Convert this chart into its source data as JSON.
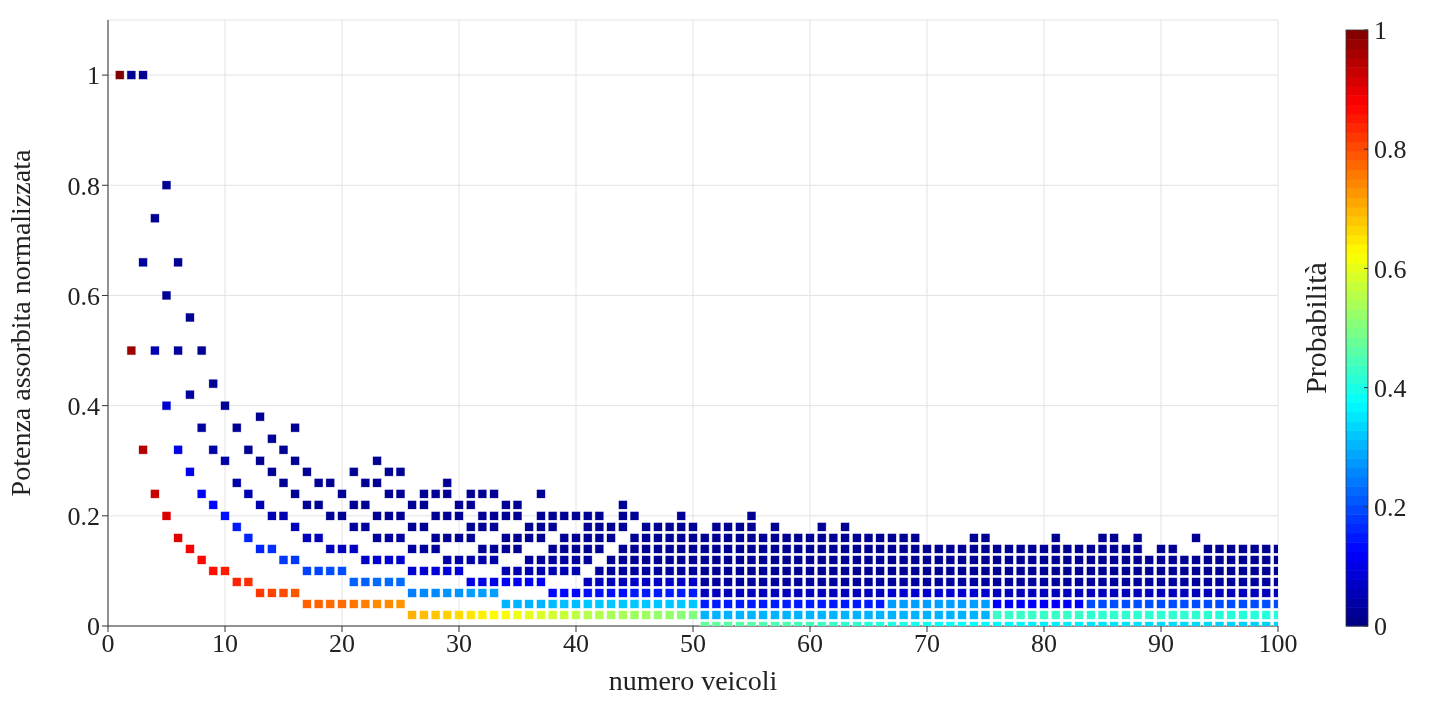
{
  "chart_data": {
    "type": "scatter",
    "xlabel": "numero veicoli",
    "ylabel": "Potenza assorbita normalizzata",
    "clabel": "Probabilità",
    "xlim": [
      0,
      100
    ],
    "xticks": [
      0,
      10,
      20,
      30,
      40,
      50,
      60,
      70,
      80,
      90,
      100
    ],
    "ylim": [
      0,
      1.1
    ],
    "yticks": [
      0,
      0.2,
      0.4,
      0.6,
      0.8,
      1
    ],
    "clim": [
      0,
      1
    ],
    "cticks": [
      0,
      0.2,
      0.4,
      0.6,
      0.8,
      1
    ],
    "grid": true,
    "marker": "square",
    "x": [
      1,
      2,
      2,
      3,
      3,
      3,
      4,
      4,
      4,
      5,
      5,
      5,
      5,
      6,
      6,
      6,
      6,
      7,
      7,
      7,
      7,
      8,
      8,
      8,
      8,
      9,
      9,
      9,
      9,
      10,
      10,
      10,
      10,
      11,
      11,
      11,
      11,
      12,
      12,
      12,
      12,
      13,
      13,
      13,
      13,
      13,
      14,
      14,
      14,
      14,
      14,
      15,
      15,
      15,
      15,
      15,
      16,
      16,
      16,
      16,
      16,
      16,
      17,
      17,
      17,
      17,
      17,
      18,
      18,
      18,
      18,
      18,
      19,
      19,
      19,
      19,
      19,
      20,
      20,
      20,
      20,
      20,
      21,
      21,
      21,
      21,
      21,
      21,
      22,
      22,
      22,
      22,
      22,
      22,
      23,
      23,
      23,
      23,
      23,
      23,
      23,
      24,
      24,
      24,
      24,
      24,
      24,
      24,
      25,
      25,
      25,
      25,
      25,
      25,
      25,
      26,
      26,
      26,
      26,
      26,
      26,
      27,
      27,
      27,
      27,
      27,
      27,
      27,
      28,
      28,
      28,
      28,
      28,
      28,
      28,
      29,
      29,
      29,
      29,
      29,
      29,
      29,
      29,
      30,
      30,
      30,
      30,
      30,
      30,
      30,
      31,
      31,
      31,
      31,
      31,
      31,
      31,
      31,
      32,
      32,
      32,
      32,
      32,
      32,
      32,
      32,
      33,
      33,
      33,
      33,
      33,
      33,
      33,
      33,
      34,
      34,
      34,
      34,
      34,
      34,
      34,
      34,
      35,
      35,
      35,
      35,
      35,
      35,
      35,
      35,
      36,
      36,
      36,
      36,
      36,
      36,
      36,
      37,
      37,
      37,
      37,
      37,
      37,
      37,
      37,
      37,
      38,
      38,
      38,
      38,
      38,
      38,
      38,
      38,
      39,
      39,
      39,
      39,
      39,
      39,
      39,
      39,
      40,
      40,
      40,
      40,
      40,
      40,
      40,
      40,
      41,
      41,
      41,
      41,
      41,
      41,
      41,
      41,
      41,
      42,
      42,
      42,
      42,
      42,
      42,
      42,
      42,
      42,
      43,
      43,
      43,
      43,
      43,
      43,
      43,
      43,
      44,
      44,
      44,
      44,
      44,
      44,
      44,
      44,
      44,
      44,
      45,
      45,
      45,
      45,
      45,
      45,
      45,
      45,
      45,
      46,
      46,
      46,
      46,
      46,
      46,
      46,
      46,
      46,
      47,
      47,
      47,
      47,
      47,
      47,
      47,
      47,
      47,
      48,
      48,
      48,
      48,
      48,
      48,
      48,
      48,
      48,
      49,
      49,
      49,
      49,
      49,
      49,
      49,
      49,
      49,
      49,
      50,
      50,
      50,
      50,
      50,
      50,
      50,
      50,
      50,
      51,
      51,
      51,
      51,
      51,
      51,
      51,
      51,
      51,
      52,
      52,
      52,
      52,
      52,
      52,
      52,
      52,
      52,
      52,
      53,
      53,
      53,
      53,
      53,
      53,
      53,
      53,
      53,
      53,
      54,
      54,
      54,
      54,
      54,
      54,
      54,
      54,
      54,
      54,
      55,
      55,
      55,
      55,
      55,
      55,
      55,
      55,
      55,
      55,
      55,
      56,
      56,
      56,
      56,
      56,
      56,
      56,
      56,
      56,
      57,
      57,
      57,
      57,
      57,
      57,
      57,
      57,
      57,
      57,
      58,
      58,
      58,
      58,
      58,
      58,
      58,
      58,
      58,
      59,
      59,
      59,
      59,
      59,
      59,
      59,
      59,
      59,
      60,
      60,
      60,
      60,
      60,
      60,
      60,
      60,
      60,
      61,
      61,
      61,
      61,
      61,
      61,
      61,
      61,
      61,
      61,
      62,
      62,
      62,
      62,
      62,
      62,
      62,
      62,
      62,
      63,
      63,
      63,
      63,
      63,
      63,
      63,
      63,
      63,
      63,
      64,
      64,
      64,
      64,
      64,
      64,
      64,
      64,
      64,
      65,
      65,
      65,
      65,
      65,
      65,
      65,
      65,
      65,
      66,
      66,
      66,
      66,
      66,
      66,
      66,
      66,
      66,
      67,
      67,
      67,
      67,
      67,
      67,
      67,
      67,
      67,
      68,
      68,
      68,
      68,
      68,
      68,
      68,
      68,
      68,
      69,
      69,
      69,
      69,
      69,
      69,
      69,
      69,
      69,
      70,
      70,
      70,
      70,
      70,
      70,
      70,
      70,
      71,
      71,
      71,
      71,
      71,
      71,
      71,
      71,
      72,
      72,
      72,
      72,
      72,
      72,
      72,
      72,
      73,
      73,
      73,
      73,
      73,
      73,
      73,
      73,
      74,
      74,
      74,
      74,
      74,
      74,
      74,
      74,
      74,
      75,
      75,
      75,
      75,
      75,
      75,
      75,
      75,
      75,
      76,
      76,
      76,
      76,
      76,
      76,
      76,
      76,
      77,
      77,
      77,
      77,
      77,
      77,
      77,
      77,
      78,
      78,
      78,
      78,
      78,
      78,
      78,
      78,
      79,
      79,
      79,
      79,
      79,
      79,
      79,
      79,
      80,
      80,
      80,
      80,
      80,
      80,
      80,
      80,
      81,
      81,
      81,
      81,
      81,
      81,
      81,
      81,
      81,
      82,
      82,
      82,
      82,
      82,
      82,
      82,
      82,
      83,
      83,
      83,
      83,
      83,
      83,
      83,
      83,
      84,
      84,
      84,
      84,
      84,
      84,
      84,
      84,
      85,
      85,
      85,
      85,
      85,
      85,
      85,
      85,
      85,
      86,
      86,
      86,
      86,
      86,
      86,
      86,
      86,
      86,
      87,
      87,
      87,
      87,
      87,
      87,
      87,
      87,
      88,
      88,
      88,
      88,
      88,
      88,
      88,
      88,
      88,
      89,
      89,
      89,
      89,
      89,
      89,
      89,
      90,
      90,
      90,
      90,
      90,
      90,
      90,
      90,
      91,
      91,
      91,
      91,
      91,
      91,
      91,
      91,
      92,
      92,
      92,
      92,
      92,
      92,
      92,
      93,
      93,
      93,
      93,
      93,
      93,
      93,
      93,
      94,
      94,
      94,
      94,
      94,
      94,
      94,
      94,
      95,
      95,
      95,
      95,
      95,
      95,
      95,
      95,
      96,
      96,
      96,
      96,
      96,
      96,
      96,
      96,
      97,
      97,
      97,
      97,
      97,
      97,
      97,
      97,
      98,
      98,
      98,
      98,
      98,
      98,
      98,
      98,
      99,
      99,
      99,
      99,
      99,
      99,
      99,
      99,
      100,
      100,
      100,
      100,
      100,
      100,
      100,
      100
    ],
    "values": [
      1,
      0.5,
      1,
      0.32,
      0.66,
      1,
      0.24,
      0.5,
      0.74,
      0.2,
      0.4,
      0.6,
      0.8,
      0.16,
      0.32,
      0.5,
      0.66,
      0.14,
      0.28,
      0.42,
      0.56,
      0.12,
      0.24,
      0.36,
      0.5,
      0.1,
      0.22,
      0.32,
      0.44,
      0.1,
      0.2,
      0.3,
      0.4,
      0.08,
      0.18,
      0.26,
      0.36,
      0.08,
      0.16,
      0.24,
      0.32,
      0.06,
      0.14,
      0.22,
      0.3,
      0.38,
      0.06,
      0.14,
      0.2,
      0.28,
      0.34,
      0.06,
      0.12,
      0.2,
      0.26,
      0.32,
      0.06,
      0.12,
      0.18,
      0.24,
      0.3,
      0.36,
      0.04,
      0.1,
      0.16,
      0.22,
      0.28,
      0.04,
      0.1,
      0.16,
      0.22,
      0.26,
      0.04,
      0.1,
      0.14,
      0.2,
      0.26,
      0.04,
      0.1,
      0.14,
      0.2,
      0.24,
      0.04,
      0.08,
      0.14,
      0.18,
      0.22,
      0.28,
      0.04,
      0.08,
      0.12,
      0.18,
      0.22,
      0.26,
      0.04,
      0.08,
      0.12,
      0.16,
      0.2,
      0.26,
      0.3,
      0.04,
      0.08,
      0.12,
      0.16,
      0.2,
      0.24,
      0.28,
      0.04,
      0.08,
      0.12,
      0.16,
      0.2,
      0.24,
      0.28,
      0.02,
      0.06,
      0.1,
      0.14,
      0.18,
      0.22,
      0.02,
      0.06,
      0.1,
      0.14,
      0.18,
      0.22,
      0.24,
      0.02,
      0.06,
      0.1,
      0.14,
      0.16,
      0.2,
      0.24,
      0.02,
      0.06,
      0.1,
      0.12,
      0.16,
      0.2,
      0.24,
      0.26,
      0.02,
      0.06,
      0.1,
      0.12,
      0.16,
      0.2,
      0.22,
      0.02,
      0.06,
      0.08,
      0.12,
      0.16,
      0.18,
      0.22,
      0.24,
      0.02,
      0.06,
      0.08,
      0.12,
      0.14,
      0.18,
      0.2,
      0.24,
      0.02,
      0.06,
      0.08,
      0.12,
      0.14,
      0.18,
      0.2,
      0.24,
      0.02,
      0.04,
      0.08,
      0.1,
      0.14,
      0.16,
      0.2,
      0.22,
      0.02,
      0.04,
      0.08,
      0.1,
      0.14,
      0.16,
      0.2,
      0.22,
      0.02,
      0.04,
      0.08,
      0.1,
      0.12,
      0.16,
      0.18,
      0.02,
      0.04,
      0.08,
      0.1,
      0.12,
      0.16,
      0.18,
      0.2,
      0.24,
      0.02,
      0.04,
      0.06,
      0.1,
      0.12,
      0.14,
      0.18,
      0.2,
      0.02,
      0.04,
      0.06,
      0.1,
      0.12,
      0.14,
      0.16,
      0.2,
      0.02,
      0.04,
      0.06,
      0.1,
      0.12,
      0.14,
      0.16,
      0.2,
      0.02,
      0.04,
      0.06,
      0.08,
      0.12,
      0.14,
      0.16,
      0.18,
      0.2,
      0.02,
      0.04,
      0.06,
      0.08,
      0.1,
      0.14,
      0.16,
      0.18,
      0.2,
      0.02,
      0.04,
      0.06,
      0.08,
      0.1,
      0.12,
      0.16,
      0.18,
      0.02,
      0.04,
      0.06,
      0.08,
      0.1,
      0.12,
      0.14,
      0.18,
      0.2,
      0.22,
      0.02,
      0.04,
      0.06,
      0.08,
      0.1,
      0.12,
      0.14,
      0.16,
      0.2,
      0.02,
      0.04,
      0.06,
      0.08,
      0.1,
      0.12,
      0.14,
      0.16,
      0.18,
      0.02,
      0.04,
      0.06,
      0.08,
      0.1,
      0.12,
      0.14,
      0.16,
      0.18,
      0.02,
      0.04,
      0.06,
      0.08,
      0.1,
      0.12,
      0.14,
      0.16,
      0.18,
      0.02,
      0.04,
      0.06,
      0.08,
      0.1,
      0.12,
      0.14,
      0.16,
      0.18,
      0.2,
      0.02,
      0.04,
      0.06,
      0.08,
      0.1,
      0.12,
      0.14,
      0.16,
      0.18,
      0,
      0.02,
      0.04,
      0.06,
      0.08,
      0.1,
      0.12,
      0.14,
      0.16,
      0,
      0.02,
      0.04,
      0.06,
      0.08,
      0.1,
      0.12,
      0.14,
      0.16,
      0.18,
      0,
      0.02,
      0.04,
      0.06,
      0.08,
      0.1,
      0.12,
      0.14,
      0.16,
      0.18,
      0,
      0.02,
      0.04,
      0.06,
      0.08,
      0.1,
      0.12,
      0.14,
      0.16,
      0.18,
      0,
      0.02,
      0.04,
      0.06,
      0.08,
      0.1,
      0.12,
      0.14,
      0.16,
      0.18,
      0.2,
      0,
      0.02,
      0.04,
      0.06,
      0.08,
      0.1,
      0.12,
      0.14,
      0.16,
      0,
      0.02,
      0.04,
      0.06,
      0.08,
      0.1,
      0.12,
      0.14,
      0.16,
      0.18,
      0,
      0.02,
      0.04,
      0.06,
      0.08,
      0.1,
      0.12,
      0.14,
      0.16,
      0,
      0.02,
      0.04,
      0.06,
      0.08,
      0.1,
      0.12,
      0.14,
      0.16,
      0,
      0.02,
      0.04,
      0.06,
      0.08,
      0.1,
      0.12,
      0.14,
      0.16,
      0,
      0.02,
      0.04,
      0.06,
      0.08,
      0.1,
      0.12,
      0.14,
      0.16,
      0.18,
      0,
      0.02,
      0.04,
      0.06,
      0.08,
      0.1,
      0.12,
      0.14,
      0.16,
      0,
      0.02,
      0.04,
      0.06,
      0.08,
      0.1,
      0.12,
      0.14,
      0.16,
      0.18,
      0,
      0.02,
      0.04,
      0.06,
      0.08,
      0.1,
      0.12,
      0.14,
      0.16,
      0,
      0.02,
      0.04,
      0.06,
      0.08,
      0.1,
      0.12,
      0.14,
      0.16,
      0,
      0.02,
      0.04,
      0.06,
      0.08,
      0.1,
      0.12,
      0.14,
      0.16,
      0,
      0.02,
      0.04,
      0.06,
      0.08,
      0.1,
      0.12,
      0.14,
      0.16,
      0,
      0.02,
      0.04,
      0.06,
      0.08,
      0.1,
      0.12,
      0.14,
      0.16,
      0,
      0.02,
      0.04,
      0.06,
      0.08,
      0.1,
      0.12,
      0.14,
      0.16,
      0,
      0.02,
      0.04,
      0.06,
      0.08,
      0.1,
      0.12,
      0.14,
      0,
      0.02,
      0.04,
      0.06,
      0.08,
      0.1,
      0.12,
      0.14,
      0,
      0.02,
      0.04,
      0.06,
      0.08,
      0.1,
      0.12,
      0.14,
      0,
      0.02,
      0.04,
      0.06,
      0.08,
      0.1,
      0.12,
      0.14,
      0,
      0.02,
      0.04,
      0.06,
      0.08,
      0.1,
      0.12,
      0.14,
      0.16,
      0,
      0.02,
      0.04,
      0.06,
      0.08,
      0.1,
      0.12,
      0.14,
      0.16,
      0,
      0.02,
      0.04,
      0.06,
      0.08,
      0.1,
      0.12,
      0.14,
      0,
      0.02,
      0.04,
      0.06,
      0.08,
      0.1,
      0.12,
      0.14,
      0,
      0.02,
      0.04,
      0.06,
      0.08,
      0.1,
      0.12,
      0.14,
      0,
      0.02,
      0.04,
      0.06,
      0.08,
      0.1,
      0.12,
      0.14,
      0,
      0.02,
      0.04,
      0.06,
      0.08,
      0.1,
      0.12,
      0.14,
      0,
      0.02,
      0.04,
      0.06,
      0.08,
      0.1,
      0.12,
      0.14,
      0.16,
      0,
      0.02,
      0.04,
      0.06,
      0.08,
      0.1,
      0.12,
      0.14,
      0,
      0.02,
      0.04,
      0.06,
      0.08,
      0.1,
      0.12,
      0.14,
      0,
      0.02,
      0.04,
      0.06,
      0.08,
      0.1,
      0.12,
      0.14,
      0,
      0.02,
      0.04,
      0.06,
      0.08,
      0.1,
      0.12,
      0.14,
      0.16,
      0,
      0.02,
      0.04,
      0.06,
      0.08,
      0.1,
      0.12,
      0.14,
      0.16,
      0,
      0.02,
      0.04,
      0.06,
      0.08,
      0.1,
      0.12,
      0.14,
      0,
      0.02,
      0.04,
      0.06,
      0.08,
      0.1,
      0.12,
      0.14,
      0.16,
      0,
      0.02,
      0.04,
      0.06,
      0.08,
      0.1,
      0.12,
      0,
      0.02,
      0.04,
      0.06,
      0.08,
      0.1,
      0.12,
      0.14,
      0,
      0.02,
      0.04,
      0.06,
      0.08,
      0.1,
      0.12,
      0.14,
      0,
      0.02,
      0.04,
      0.06,
      0.08,
      0.1,
      0.12,
      0,
      0.02,
      0.04,
      0.06,
      0.08,
      0.1,
      0.12,
      0.16,
      0,
      0.02,
      0.04,
      0.06,
      0.08,
      0.1,
      0.12,
      0.14,
      0,
      0.02,
      0.04,
      0.06,
      0.08,
      0.1,
      0.12,
      0.14,
      0,
      0.02,
      0.04,
      0.06,
      0.08,
      0.1,
      0.12,
      0.14,
      0,
      0.02,
      0.04,
      0.06,
      0.08,
      0.1,
      0.12,
      0.14,
      0,
      0.02,
      0.04,
      0.06,
      0.08,
      0.1,
      0.12,
      0.14,
      0,
      0.02,
      0.04,
      0.06,
      0.08,
      0.1,
      0.12,
      0.14,
      0,
      0.02,
      0.04,
      0.06,
      0.08,
      0.1,
      0.12,
      0.14
    ],
    "cvalues": [
      1,
      0.97,
      0.02,
      0.95,
      0.03,
      0.02,
      0.93,
      0.05,
      0.02,
      0.91,
      0.08,
      0.02,
      0.02,
      0.9,
      0.1,
      0.03,
      0.02,
      0.88,
      0.11,
      0.03,
      0.02,
      0.87,
      0.12,
      0.03,
      0.02,
      0.86,
      0.13,
      0.04,
      0.02,
      0.85,
      0.14,
      0.04,
      0.02,
      0.84,
      0.15,
      0.04,
      0.02,
      0.83,
      0.16,
      0.05,
      0.02,
      0.82,
      0.16,
      0.05,
      0.02,
      0.02,
      0.81,
      0.17,
      0.05,
      0.02,
      0.02,
      0.8,
      0.18,
      0.05,
      0.02,
      0.02,
      0.79,
      0.18,
      0.06,
      0.02,
      0.02,
      0.02,
      0.78,
      0.19,
      0.06,
      0.02,
      0.02,
      0.78,
      0.19,
      0.06,
      0.02,
      0.02,
      0.77,
      0.2,
      0.06,
      0.02,
      0.02,
      0.77,
      0.2,
      0.06,
      0.02,
      0.02,
      0.76,
      0.22,
      0.07,
      0.03,
      0.02,
      0.02,
      0.75,
      0.22,
      0.07,
      0.03,
      0.02,
      0.02,
      0.74,
      0.23,
      0.08,
      0.03,
      0.02,
      0.02,
      0.02,
      0.74,
      0.23,
      0.08,
      0.03,
      0.02,
      0.02,
      0.02,
      0.73,
      0.23,
      0.08,
      0.03,
      0.02,
      0.02,
      0.02,
      0.7,
      0.25,
      0.08,
      0.03,
      0.02,
      0.02,
      0.69,
      0.26,
      0.08,
      0.03,
      0.02,
      0.02,
      0.02,
      0.68,
      0.26,
      0.09,
      0.03,
      0.02,
      0.02,
      0.02,
      0.67,
      0.27,
      0.09,
      0.04,
      0.02,
      0.02,
      0.02,
      0.02,
      0.66,
      0.27,
      0.09,
      0.04,
      0.02,
      0.02,
      0.02,
      0.65,
      0.28,
      0.1,
      0.04,
      0.02,
      0.02,
      0.02,
      0.02,
      0.64,
      0.28,
      0.1,
      0.04,
      0.02,
      0.02,
      0.02,
      0.02,
      0.63,
      0.28,
      0.1,
      0.04,
      0.02,
      0.02,
      0.02,
      0.02,
      0.62,
      0.3,
      0.12,
      0.05,
      0.02,
      0.02,
      0.02,
      0.02,
      0.61,
      0.3,
      0.12,
      0.05,
      0.02,
      0.02,
      0.02,
      0.02,
      0.6,
      0.3,
      0.12,
      0.05,
      0.03,
      0.02,
      0.02,
      0.59,
      0.3,
      0.12,
      0.05,
      0.03,
      0.02,
      0.02,
      0.02,
      0.02,
      0.58,
      0.31,
      0.13,
      0.05,
      0.03,
      0.02,
      0.02,
      0.02,
      0.57,
      0.31,
      0.13,
      0.05,
      0.03,
      0.02,
      0.02,
      0.02,
      0.56,
      0.31,
      0.13,
      0.05,
      0.03,
      0.02,
      0.02,
      0.02,
      0.55,
      0.32,
      0.14,
      0.06,
      0.03,
      0.02,
      0.02,
      0.02,
      0.02,
      0.55,
      0.32,
      0.14,
      0.06,
      0.03,
      0.02,
      0.02,
      0.02,
      0.02,
      0.54,
      0.32,
      0.14,
      0.06,
      0.03,
      0.02,
      0.02,
      0.02,
      0.54,
      0.32,
      0.14,
      0.06,
      0.03,
      0.02,
      0.02,
      0.02,
      0.02,
      0.02,
      0.53,
      0.32,
      0.15,
      0.07,
      0.03,
      0.02,
      0.02,
      0.02,
      0.02,
      0.53,
      0.32,
      0.15,
      0.07,
      0.03,
      0.02,
      0.02,
      0.02,
      0.02,
      0.52,
      0.32,
      0.15,
      0.07,
      0.03,
      0.02,
      0.02,
      0.02,
      0.02,
      0.52,
      0.32,
      0.15,
      0.07,
      0.03,
      0.02,
      0.02,
      0.02,
      0.02,
      0.51,
      0.32,
      0.15,
      0.07,
      0.03,
      0.02,
      0.02,
      0.02,
      0.02,
      0.02,
      0.5,
      0.32,
      0.15,
      0.07,
      0.03,
      0.02,
      0.02,
      0.02,
      0.02,
      0.47,
      0.3,
      0.15,
      0.06,
      0.03,
      0.02,
      0.02,
      0.02,
      0.02,
      0.47,
      0.3,
      0.15,
      0.06,
      0.03,
      0.02,
      0.02,
      0.02,
      0.02,
      0.02,
      0.46,
      0.3,
      0.15,
      0.06,
      0.03,
      0.02,
      0.02,
      0.02,
      0.02,
      0.02,
      0.46,
      0.3,
      0.15,
      0.06,
      0.03,
      0.02,
      0.02,
      0.02,
      0.02,
      0.02,
      0.46,
      0.3,
      0.15,
      0.06,
      0.03,
      0.02,
      0.02,
      0.02,
      0.02,
      0.02,
      0.02,
      0.45,
      0.3,
      0.15,
      0.06,
      0.03,
      0.02,
      0.02,
      0.02,
      0.02,
      0.45,
      0.3,
      0.15,
      0.06,
      0.03,
      0.02,
      0.02,
      0.02,
      0.02,
      0.02,
      0.45,
      0.3,
      0.15,
      0.06,
      0.03,
      0.02,
      0.02,
      0.02,
      0.02,
      0.44,
      0.3,
      0.15,
      0.06,
      0.03,
      0.02,
      0.02,
      0.02,
      0.02,
      0.44,
      0.3,
      0.15,
      0.06,
      0.03,
      0.02,
      0.02,
      0.02,
      0.02,
      0.43,
      0.3,
      0.15,
      0.06,
      0.03,
      0.02,
      0.02,
      0.02,
      0.02,
      0.02,
      0.43,
      0.3,
      0.15,
      0.06,
      0.03,
      0.02,
      0.02,
      0.02,
      0.02,
      0.42,
      0.3,
      0.15,
      0.06,
      0.03,
      0.02,
      0.02,
      0.02,
      0.02,
      0.02,
      0.42,
      0.3,
      0.15,
      0.06,
      0.03,
      0.02,
      0.02,
      0.02,
      0.02,
      0.41,
      0.3,
      0.15,
      0.06,
      0.03,
      0.02,
      0.02,
      0.02,
      0.02,
      0.41,
      0.3,
      0.15,
      0.06,
      0.03,
      0.02,
      0.02,
      0.02,
      0.02,
      0.4,
      0.3,
      0.28,
      0.08,
      0.03,
      0.02,
      0.02,
      0.02,
      0.02,
      0.4,
      0.3,
      0.28,
      0.08,
      0.03,
      0.02,
      0.02,
      0.02,
      0.02,
      0.39,
      0.3,
      0.28,
      0.08,
      0.03,
      0.02,
      0.02,
      0.02,
      0.02,
      0.39,
      0.3,
      0.28,
      0.08,
      0.03,
      0.02,
      0.02,
      0.02,
      0.38,
      0.3,
      0.28,
      0.08,
      0.03,
      0.02,
      0.02,
      0.02,
      0.38,
      0.3,
      0.28,
      0.08,
      0.03,
      0.02,
      0.02,
      0.02,
      0.38,
      0.3,
      0.28,
      0.08,
      0.03,
      0.02,
      0.02,
      0.02,
      0.38,
      0.3,
      0.28,
      0.08,
      0.03,
      0.02,
      0.02,
      0.02,
      0.02,
      0.37,
      0.3,
      0.28,
      0.08,
      0.03,
      0.02,
      0.02,
      0.02,
      0.02,
      0.37,
      0.43,
      0.12,
      0.06,
      0.03,
      0.02,
      0.02,
      0.02,
      0.37,
      0.43,
      0.12,
      0.06,
      0.03,
      0.02,
      0.02,
      0.02,
      0.37,
      0.43,
      0.12,
      0.06,
      0.03,
      0.02,
      0.02,
      0.02,
      0.36,
      0.43,
      0.12,
      0.06,
      0.03,
      0.02,
      0.02,
      0.02,
      0.36,
      0.43,
      0.12,
      0.06,
      0.03,
      0.02,
      0.02,
      0.02,
      0.36,
      0.43,
      0.12,
      0.06,
      0.03,
      0.02,
      0.02,
      0.02,
      0.02,
      0.36,
      0.43,
      0.12,
      0.06,
      0.03,
      0.02,
      0.02,
      0.02,
      0.36,
      0.43,
      0.12,
      0.06,
      0.03,
      0.02,
      0.02,
      0.02,
      0.35,
      0.42,
      0.2,
      0.06,
      0.03,
      0.02,
      0.02,
      0.02,
      0.35,
      0.42,
      0.2,
      0.06,
      0.03,
      0.02,
      0.02,
      0.02,
      0.02,
      0.35,
      0.42,
      0.2,
      0.06,
      0.03,
      0.02,
      0.02,
      0.02,
      0.02,
      0.35,
      0.42,
      0.2,
      0.06,
      0.03,
      0.02,
      0.02,
      0.02,
      0.35,
      0.42,
      0.2,
      0.06,
      0.03,
      0.02,
      0.02,
      0.02,
      0.02,
      0.34,
      0.42,
      0.2,
      0.06,
      0.03,
      0.02,
      0.02,
      0.34,
      0.42,
      0.2,
      0.06,
      0.03,
      0.02,
      0.02,
      0.02,
      0.34,
      0.42,
      0.2,
      0.06,
      0.03,
      0.02,
      0.02,
      0.02,
      0.34,
      0.42,
      0.2,
      0.06,
      0.03,
      0.02,
      0.02,
      0.34,
      0.42,
      0.2,
      0.06,
      0.03,
      0.02,
      0.02,
      0.02,
      0.34,
      0.42,
      0.2,
      0.06,
      0.03,
      0.02,
      0.02,
      0.02,
      0.33,
      0.41,
      0.2,
      0.06,
      0.03,
      0.02,
      0.02,
      0.02,
      0.33,
      0.41,
      0.2,
      0.06,
      0.03,
      0.02,
      0.02,
      0.02,
      0.33,
      0.41,
      0.2,
      0.06,
      0.03,
      0.02,
      0.02,
      0.02,
      0.33,
      0.41,
      0.2,
      0.06,
      0.03,
      0.02,
      0.02,
      0.02,
      0.33,
      0.41,
      0.2,
      0.06,
      0.03,
      0.02,
      0.02,
      0.02,
      0.33,
      0.41,
      0.2,
      0.06,
      0.03,
      0.02,
      0.02,
      0.02
    ]
  }
}
